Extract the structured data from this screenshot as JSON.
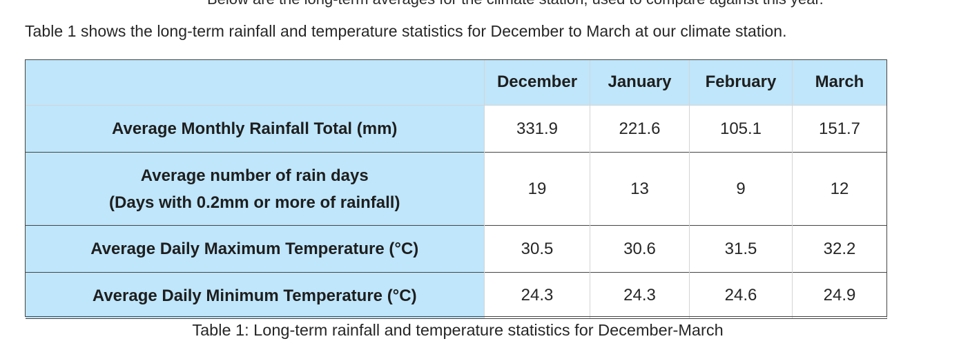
{
  "cut_line": "Below are the long-term averages for the climate station, used to compare against this year.",
  "intro": "Table 1 shows the long-term rainfall and temperature statistics for December to March at our climate station.",
  "table": {
    "columns": [
      "December",
      "January",
      "February",
      "March"
    ],
    "rows": [
      {
        "label_line1": "Average Monthly Rainfall Total (mm)",
        "label_line2": "",
        "values": [
          "331.9",
          "221.6",
          "105.1",
          "151.7"
        ]
      },
      {
        "label_line1": "Average number of rain days",
        "label_line2": "(Days with 0.2mm or more of rainfall)",
        "values": [
          "19",
          "13",
          "9",
          "12"
        ]
      },
      {
        "label_line1": "Average Daily Maximum Temperature (°C)",
        "label_line2": "",
        "values": [
          "30.5",
          "30.6",
          "31.5",
          "32.2"
        ]
      },
      {
        "label_line1": "Average Daily Minimum Temperature (°C)",
        "label_line2": "",
        "values": [
          "24.3",
          "24.3",
          "24.6",
          "24.9"
        ]
      }
    ]
  },
  "caption": "Table 1: Long-term rainfall and temperature statistics for December-March"
}
